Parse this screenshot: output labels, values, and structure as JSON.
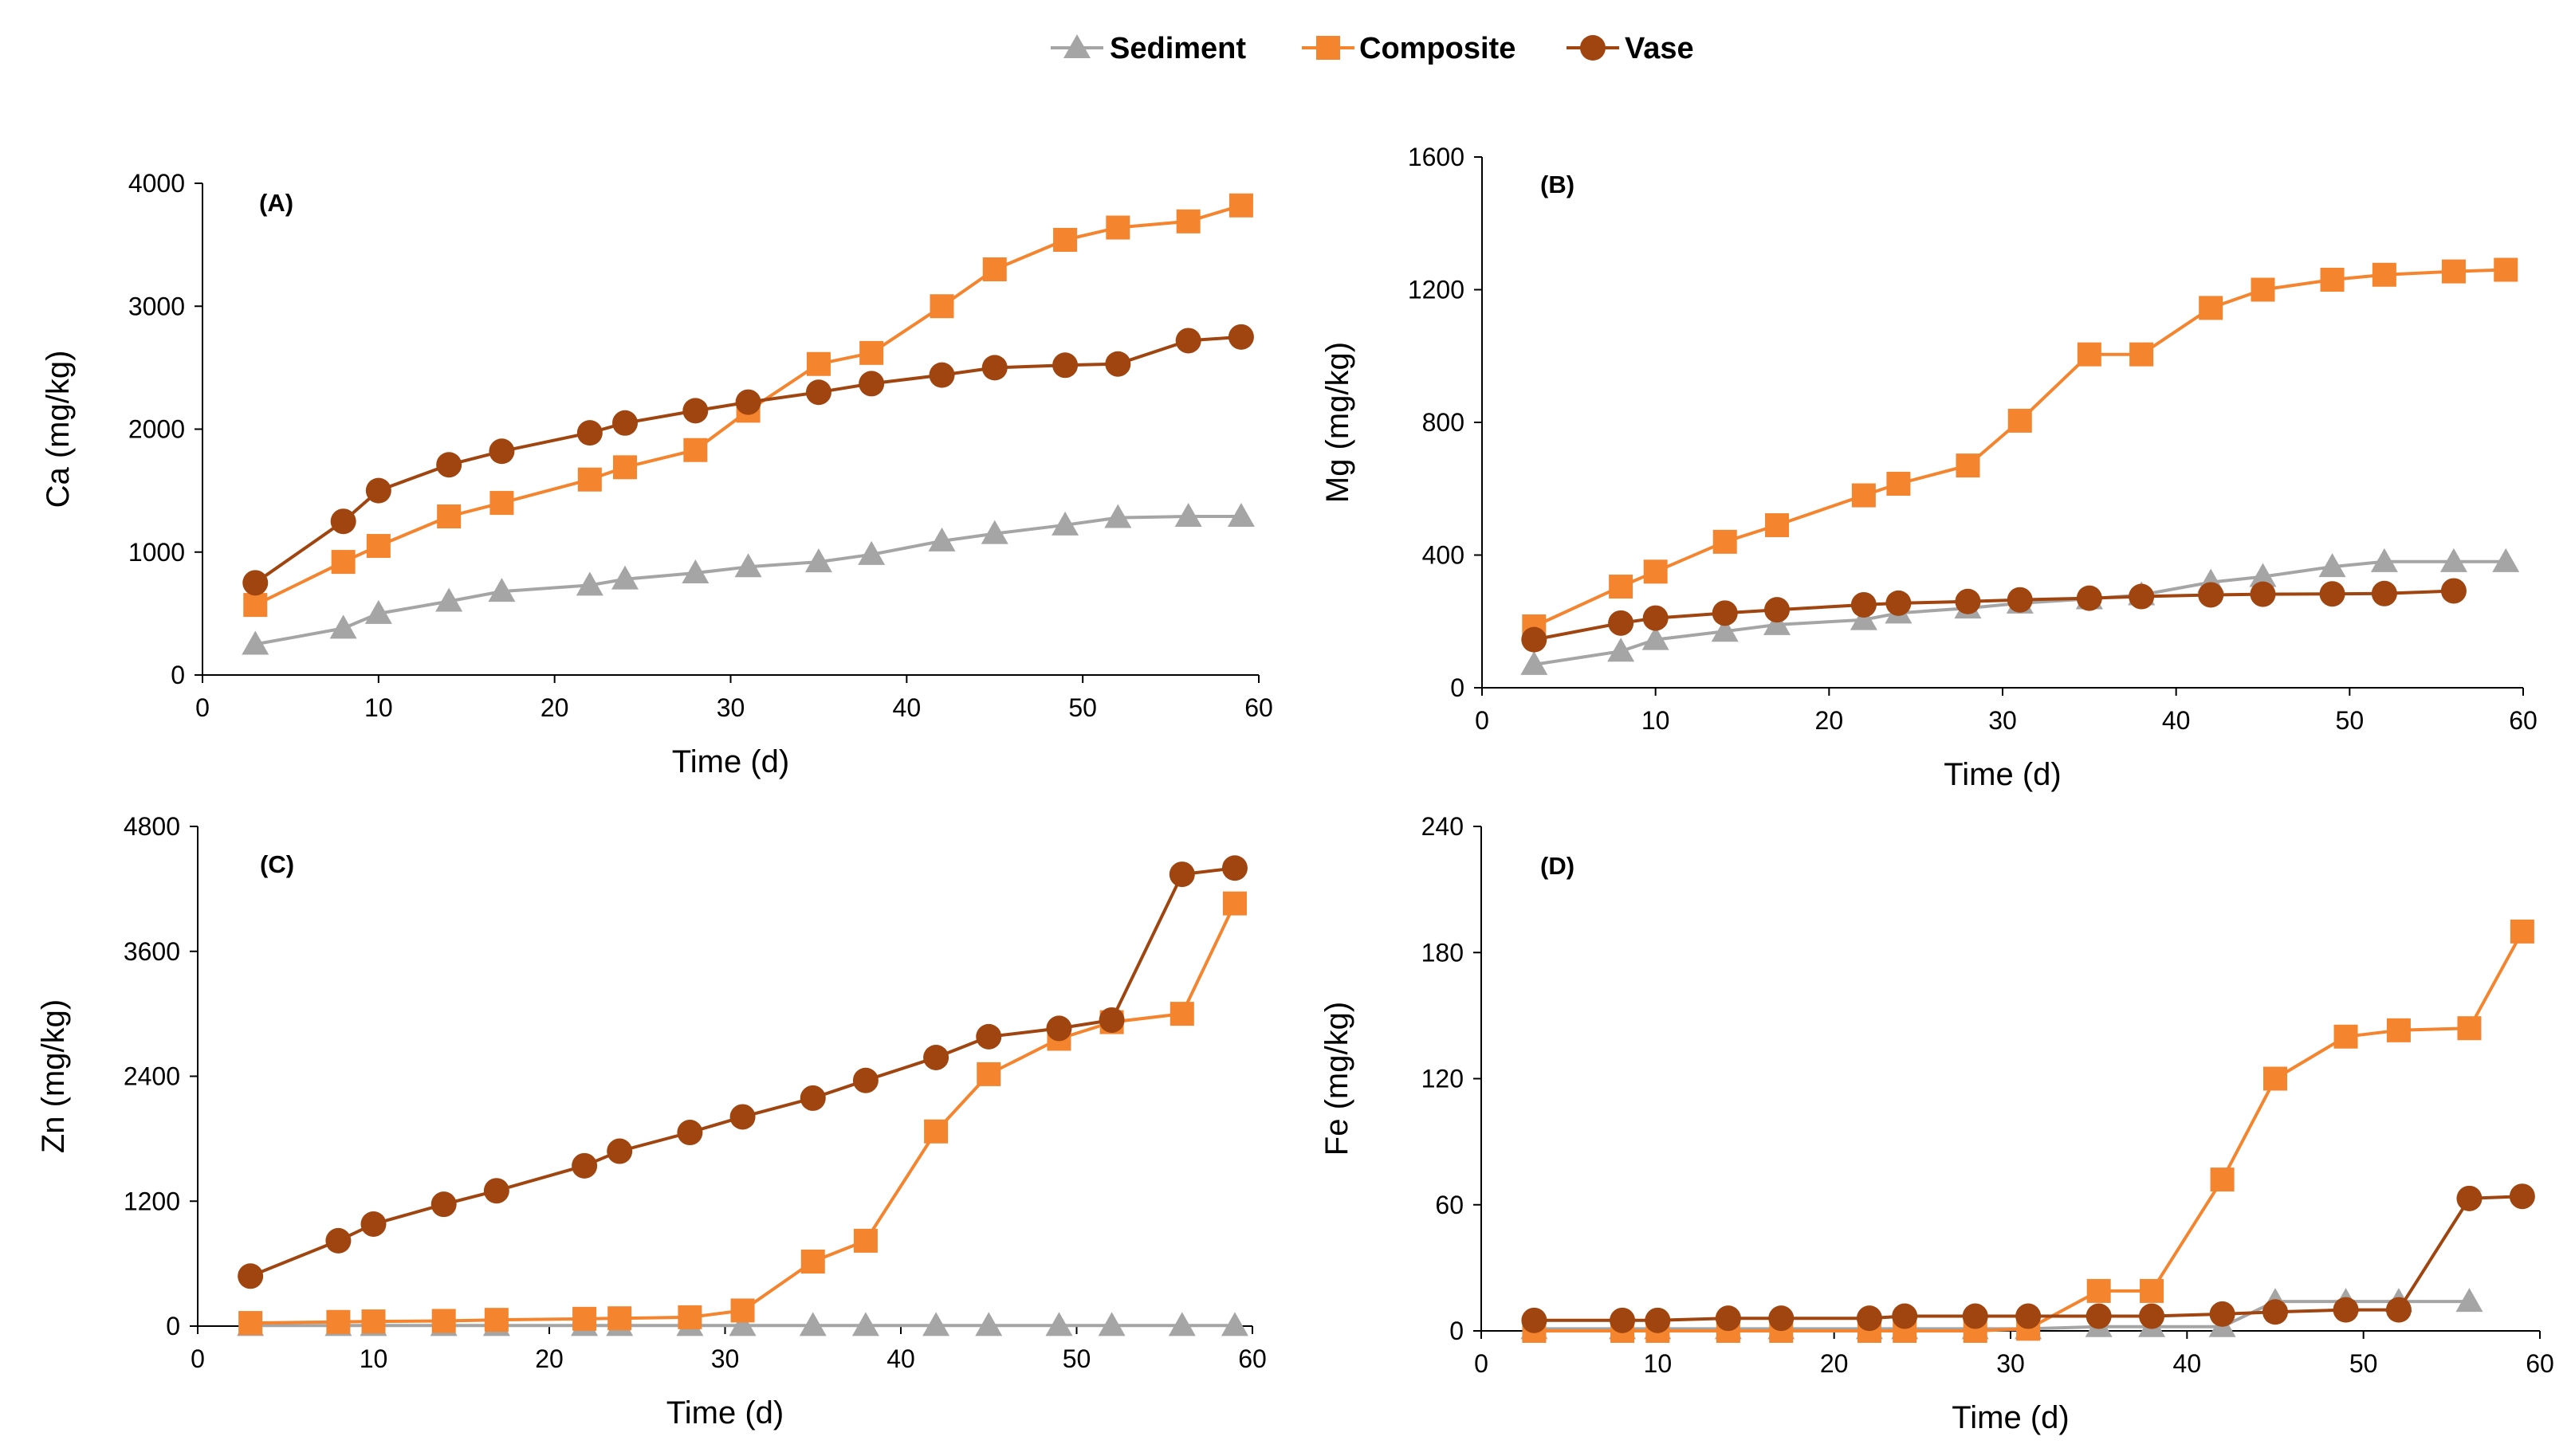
{
  "legend": [
    {
      "name": "Sediment",
      "color": "#A5A5A5",
      "marker": "triangle"
    },
    {
      "name": "Composite",
      "color": "#F4842D",
      "marker": "square"
    },
    {
      "name": "Vase",
      "color": "#A0450F",
      "marker": "circle"
    }
  ],
  "chart_data": [
    {
      "type": "line",
      "panel_label": "(A)",
      "xlabel": "Time (d)",
      "ylabel": "Ca (mg/kg)",
      "xlim": [
        0,
        60
      ],
      "ylim": [
        0,
        4000
      ],
      "xticks": [
        "0",
        "10",
        "20",
        "30",
        "40",
        "50",
        "60"
      ],
      "yticks": [
        "0",
        "1000",
        "2000",
        "3000",
        "4000"
      ],
      "series": [
        {
          "name": "Sediment",
          "x": [
            3,
            8,
            10,
            14,
            17,
            22,
            24,
            28,
            31,
            35,
            38,
            42,
            45,
            49,
            52,
            56,
            59
          ],
          "y": [
            250,
            380,
            500,
            600,
            680,
            730,
            780,
            830,
            880,
            920,
            980,
            1090,
            1150,
            1220,
            1280,
            1290,
            1290
          ]
        },
        {
          "name": "Composite",
          "x": [
            3,
            8,
            10,
            14,
            17,
            22,
            24,
            28,
            31,
            35,
            38,
            42,
            45,
            49,
            52,
            56,
            59
          ],
          "y": [
            570,
            920,
            1050,
            1290,
            1400,
            1590,
            1690,
            1830,
            2150,
            2530,
            2620,
            3000,
            3300,
            3540,
            3640,
            3690,
            3820
          ]
        },
        {
          "name": "Vase",
          "x": [
            3,
            8,
            10,
            14,
            17,
            22,
            24,
            28,
            31,
            35,
            38,
            42,
            45,
            49,
            52,
            56,
            59
          ],
          "y": [
            750,
            1250,
            1500,
            1710,
            1820,
            1970,
            2050,
            2150,
            2220,
            2300,
            2370,
            2440,
            2500,
            2520,
            2530,
            2720,
            2750
          ]
        }
      ]
    },
    {
      "type": "line",
      "panel_label": "(B)",
      "xlabel": "Time (d)",
      "ylabel": "Mg (mg/kg)",
      "xlim": [
        0,
        60
      ],
      "ylim": [
        0,
        1600
      ],
      "xticks": [
        "0",
        "10",
        "20",
        "30",
        "40",
        "50",
        "60"
      ],
      "yticks": [
        "0",
        "400",
        "800",
        "1200",
        "1600"
      ],
      "series": [
        {
          "name": "Sediment",
          "x": [
            3,
            8,
            10,
            14,
            17,
            22,
            24,
            28,
            31,
            35,
            38,
            42,
            45,
            49,
            52,
            56,
            59
          ],
          "y": [
            70,
            110,
            145,
            170,
            190,
            205,
            225,
            240,
            255,
            268,
            280,
            318,
            335,
            365,
            380,
            380,
            380
          ]
        },
        {
          "name": "Composite",
          "x": [
            3,
            8,
            10,
            14,
            17,
            22,
            24,
            28,
            31,
            35,
            38,
            42,
            45,
            49,
            52,
            56,
            59
          ],
          "y": [
            185,
            305,
            350,
            440,
            490,
            580,
            615,
            670,
            805,
            1005,
            1005,
            1145,
            1200,
            1230,
            1245,
            1255,
            1260
          ]
        },
        {
          "name": "Vase",
          "x": [
            3,
            8,
            10,
            14,
            17,
            22,
            24,
            28,
            31,
            35,
            38,
            42,
            45,
            49,
            52,
            56
          ],
          "y": [
            145,
            195,
            210,
            225,
            235,
            250,
            255,
            260,
            265,
            270,
            275,
            280,
            282,
            283,
            284,
            292
          ]
        }
      ]
    },
    {
      "type": "line",
      "panel_label": "(C)",
      "xlabel": "Time (d)",
      "ylabel": "Zn  (mg/kg)",
      "xlim": [
        0,
        60
      ],
      "ylim": [
        0,
        4800
      ],
      "xticks": [
        "0",
        "10",
        "20",
        "30",
        "40",
        "50",
        "60"
      ],
      "yticks": [
        "0",
        "1200",
        "2400",
        "3600",
        "4800"
      ],
      "series": [
        {
          "name": "Sediment",
          "x": [
            3,
            8,
            10,
            14,
            17,
            22,
            24,
            28,
            31,
            35,
            38,
            42,
            45,
            49,
            52,
            56,
            59
          ],
          "y": [
            5,
            5,
            5,
            5,
            5,
            5,
            5,
            5,
            5,
            5,
            5,
            5,
            5,
            5,
            5,
            5,
            5
          ]
        },
        {
          "name": "Composite",
          "x": [
            3,
            8,
            10,
            14,
            17,
            22,
            24,
            28,
            31,
            35,
            38,
            42,
            45,
            49,
            52,
            56,
            59
          ],
          "y": [
            30,
            40,
            45,
            50,
            60,
            70,
            75,
            85,
            150,
            620,
            820,
            1870,
            2420,
            2760,
            2920,
            3000,
            4060
          ]
        },
        {
          "name": "Vase",
          "x": [
            3,
            8,
            10,
            14,
            17,
            22,
            24,
            28,
            31,
            35,
            38,
            42,
            45,
            49,
            52,
            56,
            59
          ],
          "y": [
            480,
            820,
            980,
            1170,
            1300,
            1540,
            1680,
            1860,
            2010,
            2190,
            2360,
            2580,
            2780,
            2860,
            2940,
            4340,
            4400
          ]
        }
      ]
    },
    {
      "type": "line",
      "panel_label": "(D)",
      "xlabel": "Time (d)",
      "ylabel": "Fe (mg/kg)",
      "xlim": [
        0,
        60
      ],
      "ylim": [
        0,
        240
      ],
      "xticks": [
        "0",
        "10",
        "20",
        "30",
        "40",
        "50",
        "60"
      ],
      "yticks": [
        "0",
        "60",
        "120",
        "180",
        "240"
      ],
      "series": [
        {
          "name": "Sediment",
          "x": [
            3,
            8,
            10,
            14,
            17,
            22,
            24,
            28,
            31,
            35,
            38,
            42,
            45,
            49,
            52,
            56
          ],
          "y": [
            1,
            1,
            1,
            1,
            1,
            1,
            1,
            1,
            1,
            2,
            2,
            2,
            14,
            14,
            14,
            14
          ]
        },
        {
          "name": "Composite",
          "x": [
            3,
            8,
            10,
            14,
            17,
            22,
            24,
            28,
            31,
            35,
            38,
            42,
            45,
            49,
            52,
            56,
            59
          ],
          "y": [
            0,
            0,
            0,
            0,
            0,
            0,
            0,
            0,
            1,
            19,
            19,
            72,
            120,
            140,
            143,
            144,
            190
          ]
        },
        {
          "name": "Vase",
          "x": [
            3,
            8,
            10,
            14,
            17,
            22,
            24,
            28,
            31,
            35,
            38,
            42,
            45,
            49,
            52,
            56,
            59
          ],
          "y": [
            5,
            5,
            5,
            6,
            6,
            6,
            7,
            7,
            7,
            7,
            7,
            8,
            9,
            10,
            10,
            63,
            64
          ]
        }
      ]
    }
  ]
}
